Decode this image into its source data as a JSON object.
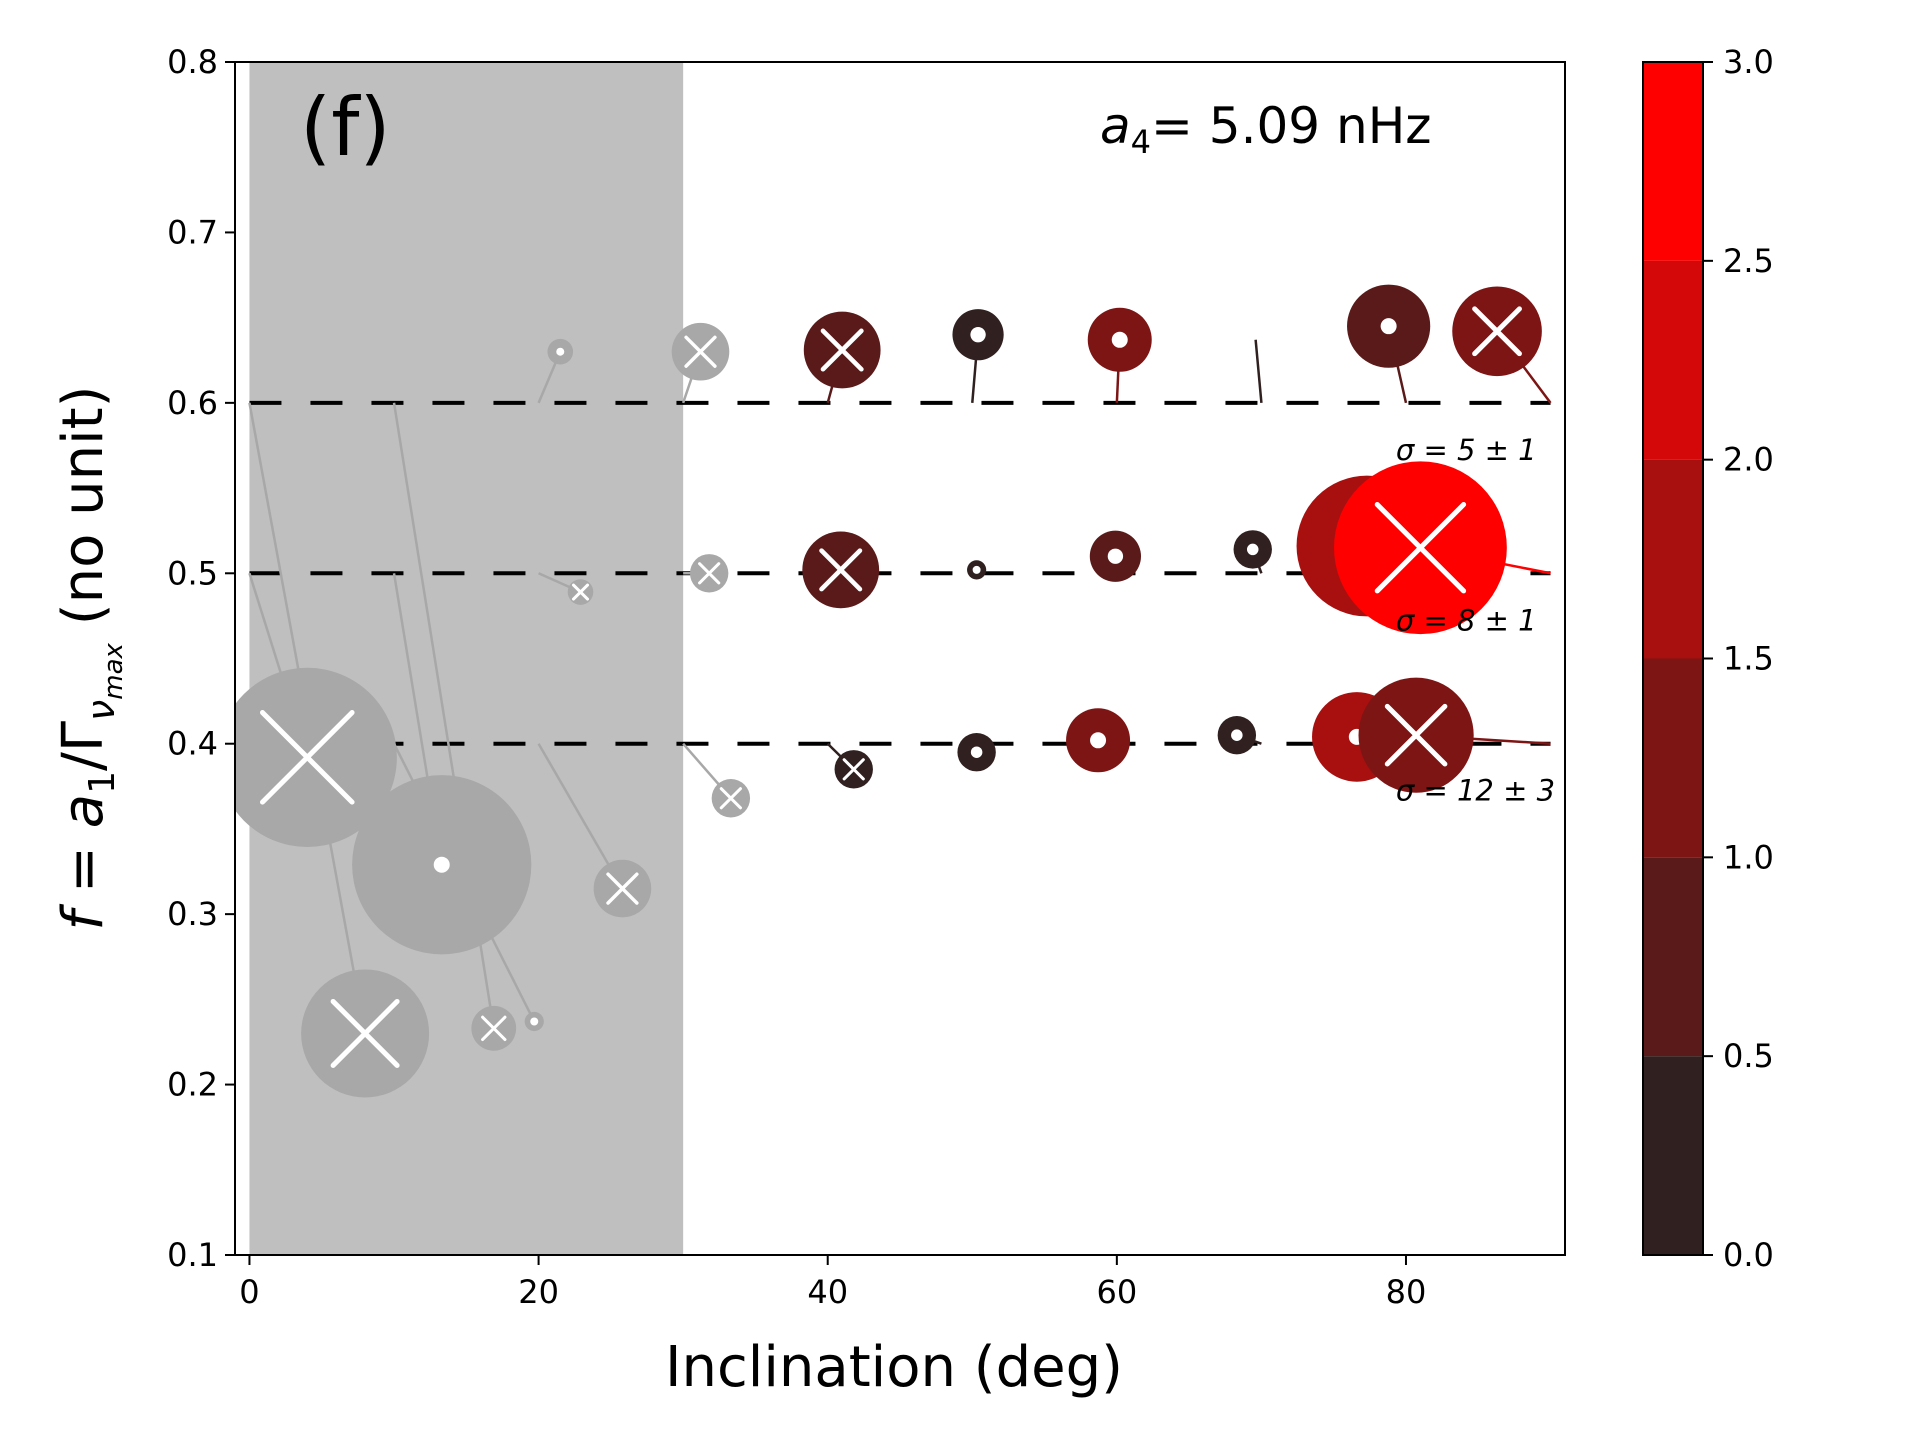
{
  "chart_data": {
    "type": "scatter",
    "panel_label": "(f)",
    "annotation": {
      "symbol": "a",
      "subscript": "4",
      "text": "= 5.09 nHz"
    },
    "xlabel": "Inclination (deg)",
    "ylabel": {
      "text": "f = a1/Γνmax (no unit)",
      "f": "f",
      "eq": " = ",
      "a": "a",
      "a_sub": "1",
      "slash": "/Γ",
      "nu": "ν",
      "nu_sub": "max",
      "unit": " (no unit)"
    },
    "xlim": [
      -1,
      91
    ],
    "ylim": [
      0.1,
      0.8
    ],
    "x_ticks": [
      {
        "value": 0,
        "label": "0"
      },
      {
        "value": 20,
        "label": "20"
      },
      {
        "value": 40,
        "label": "40"
      },
      {
        "value": 60,
        "label": "60"
      },
      {
        "value": 80,
        "label": "80"
      }
    ],
    "y_ticks": [
      {
        "value": 0.1,
        "label": "0.1"
      },
      {
        "value": 0.2,
        "label": "0.2"
      },
      {
        "value": 0.3,
        "label": "0.3"
      },
      {
        "value": 0.4,
        "label": "0.4"
      },
      {
        "value": 0.5,
        "label": "0.5"
      },
      {
        "value": 0.6,
        "label": "0.6"
      },
      {
        "value": 0.7,
        "label": "0.7"
      },
      {
        "value": 0.8,
        "label": "0.8"
      }
    ],
    "excluded_region": {
      "x_from": 0,
      "x_to": 30,
      "color": "#bfbfbf"
    },
    "reference_lines": [
      {
        "y": 0.6,
        "sigma_label": "σ = 5 ± 1"
      },
      {
        "y": 0.5,
        "sigma_label": "σ = 8 ± 1"
      },
      {
        "y": 0.4,
        "sigma_label": "σ = 12 ± 3"
      }
    ],
    "colorbar": {
      "min": 0,
      "max": 3,
      "ticks": [
        {
          "value": 0,
          "label": "0.0"
        },
        {
          "value": 0.5,
          "label": "0.5"
        },
        {
          "value": 1,
          "label": "1.0"
        },
        {
          "value": 1.5,
          "label": "1.5"
        },
        {
          "value": 2,
          "label": "2.0"
        },
        {
          "value": 2.5,
          "label": "2.5"
        },
        {
          "value": 3,
          "label": "3.0"
        }
      ],
      "bins": [
        {
          "from": 0,
          "to": 0.5,
          "color": "#302020"
        },
        {
          "from": 0.5,
          "to": 1,
          "color": "#5a1a1a"
        },
        {
          "from": 1,
          "to": 1.5,
          "color": "#7d1515"
        },
        {
          "from": 1.5,
          "to": 2,
          "color": "#a81010"
        },
        {
          "from": 2,
          "to": 2.5,
          "color": "#d40808"
        },
        {
          "from": 2.5,
          "to": 3,
          "color": "#ff0000"
        }
      ]
    },
    "gray_color": "#a8a8a8",
    "points": [
      {
        "x0": 20,
        "y0": 0.6,
        "x": 21.5,
        "y": 0.63,
        "size": 0.4,
        "marker": "dot",
        "value": 0.2,
        "excluded": true
      },
      {
        "x0": 30,
        "y0": 0.6,
        "x": 31.2,
        "y": 0.63,
        "size": 0.9,
        "marker": "x",
        "value": 0.2,
        "excluded": true
      },
      {
        "x0": 40,
        "y0": 0.6,
        "x": 41,
        "y": 0.631,
        "size": 1.2,
        "marker": "x",
        "value": 0.8,
        "excluded": false
      },
      {
        "x0": 50,
        "y0": 0.6,
        "x": 50.4,
        "y": 0.64,
        "size": 0.8,
        "marker": "dot",
        "value": 0.3,
        "excluded": false
      },
      {
        "x0": 60,
        "y0": 0.6,
        "x": 60.2,
        "y": 0.637,
        "size": 1.0,
        "marker": "dot",
        "value": 1.2,
        "excluded": false
      },
      {
        "x0": 70,
        "y0": 0.6,
        "x": 69.6,
        "y": 0.637,
        "size": 0.0,
        "marker": "dot",
        "value": 0.2,
        "excluded": false
      },
      {
        "x0": 80,
        "y0": 0.6,
        "x": 78.8,
        "y": 0.645,
        "size": 1.3,
        "marker": "dot",
        "value": 0.8,
        "excluded": false
      },
      {
        "x0": 90,
        "y0": 0.6,
        "x": 86.3,
        "y": 0.642,
        "size": 1.4,
        "marker": "x",
        "value": 1.3,
        "excluded": false
      },
      {
        "x0": 0,
        "y0": 0.5,
        "x": 4,
        "y": 0.392,
        "size": 2.8,
        "marker": "x",
        "value": 0.2,
        "excluded": true
      },
      {
        "x0": 10,
        "y0": 0.5,
        "x": 13.3,
        "y": 0.329,
        "size": 2.8,
        "marker": "dot",
        "value": 0.2,
        "excluded": true
      },
      {
        "x0": 20,
        "y0": 0.5,
        "x": 22.9,
        "y": 0.489,
        "size": 0.4,
        "marker": "x",
        "value": 0.2,
        "excluded": true
      },
      {
        "x0": 30,
        "y0": 0.5,
        "x": 31.8,
        "y": 0.5,
        "size": 0.6,
        "marker": "x",
        "value": 0.2,
        "excluded": true
      },
      {
        "x0": 40,
        "y0": 0.5,
        "x": 40.9,
        "y": 0.502,
        "size": 1.2,
        "marker": "x",
        "value": 0.8,
        "excluded": false
      },
      {
        "x0": 50,
        "y0": 0.5,
        "x": 50.3,
        "y": 0.502,
        "size": 0.3,
        "marker": "dot",
        "value": 0.2,
        "excluded": false
      },
      {
        "x0": 60,
        "y0": 0.5,
        "x": 59.9,
        "y": 0.51,
        "size": 0.8,
        "marker": "dot",
        "value": 0.5,
        "excluded": false
      },
      {
        "x0": 70,
        "y0": 0.5,
        "x": 69.4,
        "y": 0.514,
        "size": 0.6,
        "marker": "dot",
        "value": 0.4,
        "excluded": false
      },
      {
        "x0": 80,
        "y0": 0.5,
        "x": 77.3,
        "y": 0.516,
        "size": 2.2,
        "marker": "dot",
        "value": 1.6,
        "excluded": false
      },
      {
        "x0": 90,
        "y0": 0.5,
        "x": 81,
        "y": 0.515,
        "size": 2.7,
        "marker": "x",
        "value": 2.7,
        "excluded": false
      },
      {
        "x0": 0,
        "y0": 0.6,
        "x": 8,
        "y": 0.23,
        "size": 2.0,
        "marker": "x",
        "value": 0.2,
        "excluded": true
      },
      {
        "x0": 10,
        "y0": 0.6,
        "x": 16.9,
        "y": 0.233,
        "size": 0.7,
        "marker": "x",
        "value": 0.2,
        "excluded": true
      },
      {
        "x0": 10,
        "y0": 0.4,
        "x": 19.7,
        "y": 0.237,
        "size": 0.3,
        "marker": "dot",
        "value": 0.2,
        "excluded": true
      },
      {
        "x0": 20,
        "y0": 0.4,
        "x": 25.8,
        "y": 0.315,
        "size": 0.9,
        "marker": "x",
        "value": 0.2,
        "excluded": true
      },
      {
        "x0": 30,
        "y0": 0.4,
        "x": 33.3,
        "y": 0.368,
        "size": 0.6,
        "marker": "x",
        "value": 0.2,
        "excluded": true
      },
      {
        "x0": 40,
        "y0": 0.4,
        "x": 41.8,
        "y": 0.385,
        "size": 0.6,
        "marker": "x",
        "value": 0.4,
        "excluded": false
      },
      {
        "x0": 50,
        "y0": 0.4,
        "x": 50.3,
        "y": 0.395,
        "size": 0.6,
        "marker": "dot",
        "value": 0.3,
        "excluded": false
      },
      {
        "x0": 60,
        "y0": 0.4,
        "x": 58.7,
        "y": 0.402,
        "size": 1.0,
        "marker": "dot",
        "value": 1.2,
        "excluded": false
      },
      {
        "x0": 70,
        "y0": 0.4,
        "x": 68.3,
        "y": 0.405,
        "size": 0.6,
        "marker": "dot",
        "value": 0.4,
        "excluded": false
      },
      {
        "x0": 80,
        "y0": 0.4,
        "x": 76.6,
        "y": 0.404,
        "size": 1.4,
        "marker": "dot",
        "value": 1.6,
        "excluded": false
      },
      {
        "x0": 90,
        "y0": 0.4,
        "x": 80.7,
        "y": 0.405,
        "size": 1.8,
        "marker": "x",
        "value": 1.2,
        "excluded": false
      }
    ]
  }
}
